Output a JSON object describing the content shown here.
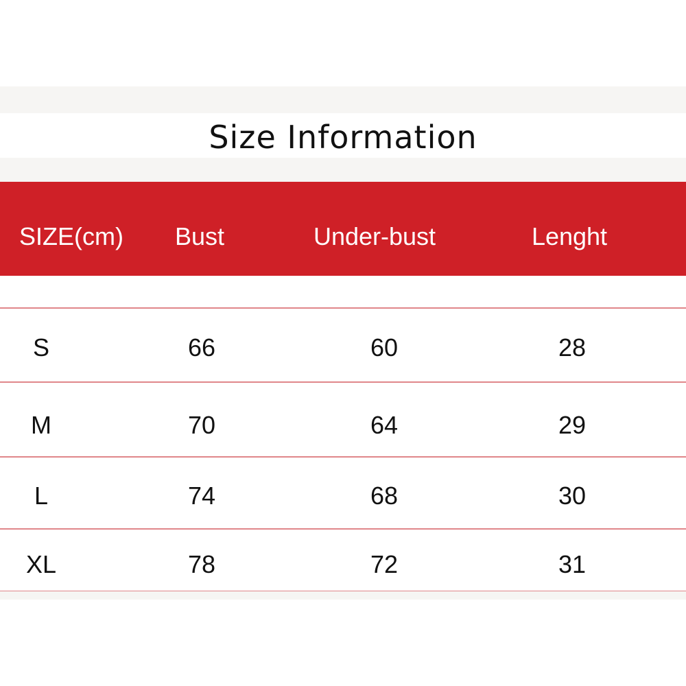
{
  "title": "Size Information",
  "colors": {
    "header_bg": "#cf2027",
    "row_line": "#e0868a"
  },
  "table": {
    "headers": [
      "SIZE(cm)",
      "Bust",
      "Under-bust",
      "Lenght"
    ],
    "rows": [
      [
        "S",
        "66",
        "60",
        "28"
      ],
      [
        "M",
        "70",
        "64",
        "29"
      ],
      [
        "L",
        "74",
        "68",
        "30"
      ],
      [
        "XL",
        "78",
        "72",
        "31"
      ]
    ]
  }
}
